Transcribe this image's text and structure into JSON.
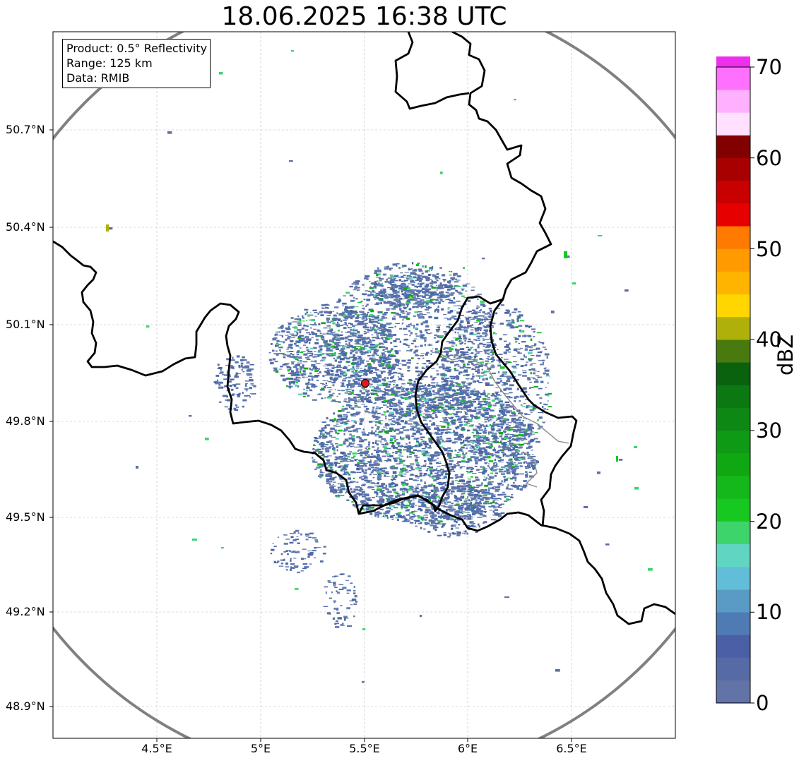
{
  "title": "18.06.2025 16:38 UTC",
  "info": {
    "product": "Product: 0.5° Reflectivity",
    "range": "Range: 125 km",
    "data": "Data: RMIB"
  },
  "axes": {
    "lat_labels": [
      "50.7°N",
      "50.4°N",
      "50.1°N",
      "49.8°N",
      "49.5°N",
      "49.2°N",
      "48.9°N"
    ],
    "lon_labels": [
      "4.5°E",
      "5°E",
      "5.5°E",
      "6°E",
      "6.5°E"
    ],
    "gridlines": true
  },
  "radar_site": {
    "lon": 5.505,
    "lat": 49.914,
    "marker_color": "#e0191f"
  },
  "range_ring_color": "#808080",
  "colorbar": {
    "label": "dBZ",
    "tick_labels": [
      "0",
      "10",
      "20",
      "30",
      "40",
      "50",
      "60",
      "70"
    ],
    "colors": [
      "#6273a8",
      "#566aa6",
      "#4a5fa5",
      "#4e7bb4",
      "#5a9bc6",
      "#62bed8",
      "#60d6c2",
      "#3ed46c",
      "#16c820",
      "#14b81a",
      "#10a812",
      "#0f9a16",
      "#0e8814",
      "#0c7812",
      "#0a620e",
      "#497a10",
      "#b0b00a",
      "#ffd600",
      "#ffb400",
      "#ff9a00",
      "#ff7a00",
      "#e60000",
      "#c80000",
      "#a80000",
      "#820000",
      "#ffe0ff",
      "#ffb0ff",
      "#ff70ff",
      "#ee30ee"
    ]
  }
}
